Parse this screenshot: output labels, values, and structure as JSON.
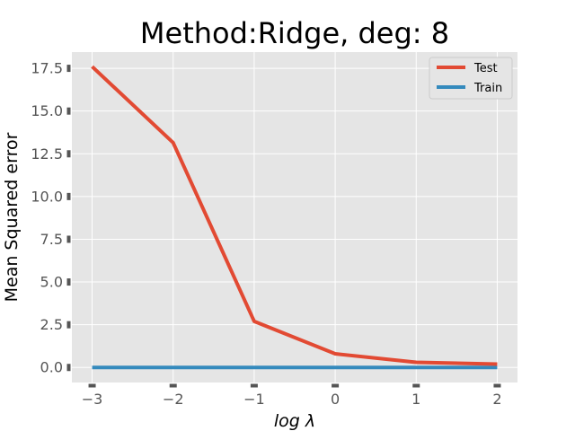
{
  "chart_data": {
    "type": "line",
    "title": "Method:Ridge, deg: 8",
    "xlabel": "log λ",
    "ylabel": "Mean Squared error",
    "x": [
      -3,
      -2,
      -1,
      0,
      1,
      2
    ],
    "xlim": [
      -3.25,
      2.25
    ],
    "ylim": [
      -0.88,
      18.45
    ],
    "x_ticks": [
      -3,
      -2,
      -1,
      0,
      1,
      2
    ],
    "x_tick_labels": [
      "−3",
      "−2",
      "−1",
      "0",
      "1",
      "2"
    ],
    "y_ticks": [
      0,
      2.5,
      5,
      7.5,
      10,
      12.5,
      15,
      17.5
    ],
    "y_tick_labels": [
      "0.0",
      "2.5",
      "5.0",
      "7.5",
      "10.0",
      "12.5",
      "15.0",
      "17.5"
    ],
    "grid": true,
    "legend_position": "top-right",
    "series": [
      {
        "name": "Test",
        "color": "#E24A33",
        "values": [
          17.6,
          13.15,
          2.7,
          0.8,
          0.3,
          0.2
        ]
      },
      {
        "name": "Train",
        "color": "#348ABD",
        "values": [
          0.0,
          0.0,
          0.0,
          0.0,
          0.0,
          0.0
        ]
      }
    ]
  }
}
